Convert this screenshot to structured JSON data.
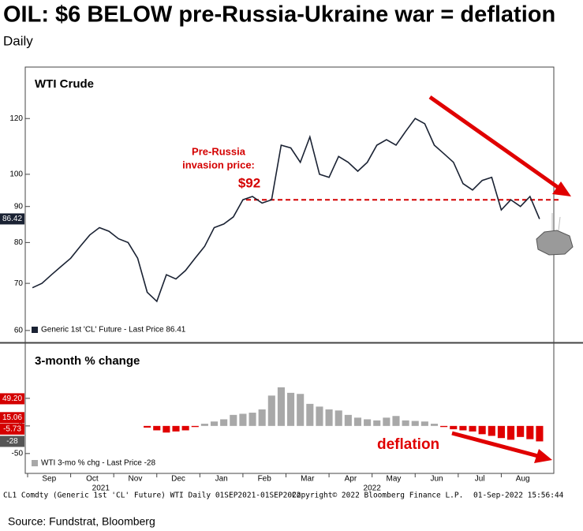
{
  "chart_data": [
    {
      "type": "line",
      "title": "OIL: $6 BELOW pre-Russia-Ukraine war = deflation",
      "subtitle": "Daily",
      "panel_title": "WTI Crude",
      "log_scale": true,
      "color": "#1a2233",
      "legend": "Generic 1st 'CL' Future - Last Price 86.41",
      "last_price_tag": 86.42,
      "values": [
        69,
        70,
        72,
        74,
        76,
        79,
        82,
        84,
        83,
        81,
        80,
        76,
        68,
        66,
        72,
        71,
        73,
        76,
        79,
        84,
        85,
        87,
        92,
        93,
        91,
        92,
        110,
        109,
        104,
        113,
        100,
        99,
        106,
        104,
        101,
        104,
        110,
        112,
        110,
        115,
        120,
        118,
        110,
        107,
        104,
        97,
        95,
        98,
        99,
        89,
        92,
        90,
        93,
        86.42
      ],
      "ylim": [
        58,
        142
      ],
      "yticks": [
        60,
        70,
        80,
        90,
        100,
        120
      ],
      "reference": {
        "value": 92,
        "label": "$92"
      },
      "reference_color": "#d40000",
      "annotation": [
        "Pre-Russia",
        "invasion price:"
      ]
    },
    {
      "type": "bar",
      "panel_title": "3-month % change",
      "legend": "WTI 3-mo % chg - Last Price -28",
      "positive_color": "#a8a8a8",
      "negative_color": "#e00000",
      "values": [
        null,
        null,
        null,
        null,
        null,
        null,
        null,
        null,
        null,
        null,
        null,
        null,
        -3,
        -8,
        -12,
        -10,
        -8,
        -2,
        4,
        8,
        12,
        20,
        22,
        24,
        30,
        55,
        70,
        60,
        58,
        40,
        35,
        30,
        28,
        20,
        15,
        12,
        10,
        15,
        18,
        10,
        9,
        8,
        4,
        -2,
        -6,
        -8,
        -10,
        -15,
        -18,
        -22,
        -25,
        -20,
        -24,
        -28
      ],
      "ylim": [
        -86,
        147
      ],
      "yticks": [
        -50,
        0,
        50
      ],
      "tags": [
        {
          "value": 49.2,
          "label": "49.20"
        },
        {
          "value": 15.06,
          "label": "15.06"
        },
        {
          "value": -5.73,
          "label": "-5.73"
        },
        {
          "value": -28,
          "label": "-28"
        }
      ],
      "annotation": "deflation",
      "months": [
        "Sep",
        "Oct",
        "Nov",
        "Dec",
        "Jan",
        "Feb",
        "Mar",
        "Apr",
        "May",
        "Jun",
        "Jul",
        "Aug"
      ],
      "years": [
        "2021",
        "2022"
      ]
    }
  ],
  "footer": {
    "left": "CL1 Comdty (Generic 1st 'CL' Future) WTI  Daily 01SEP2021-01SEP2022",
    "center": "Copyright© 2022 Bloomberg Finance L.P.",
    "right": "01-Sep-2022 15:56:44"
  },
  "source": "Source: Fundstrat, Bloomberg"
}
